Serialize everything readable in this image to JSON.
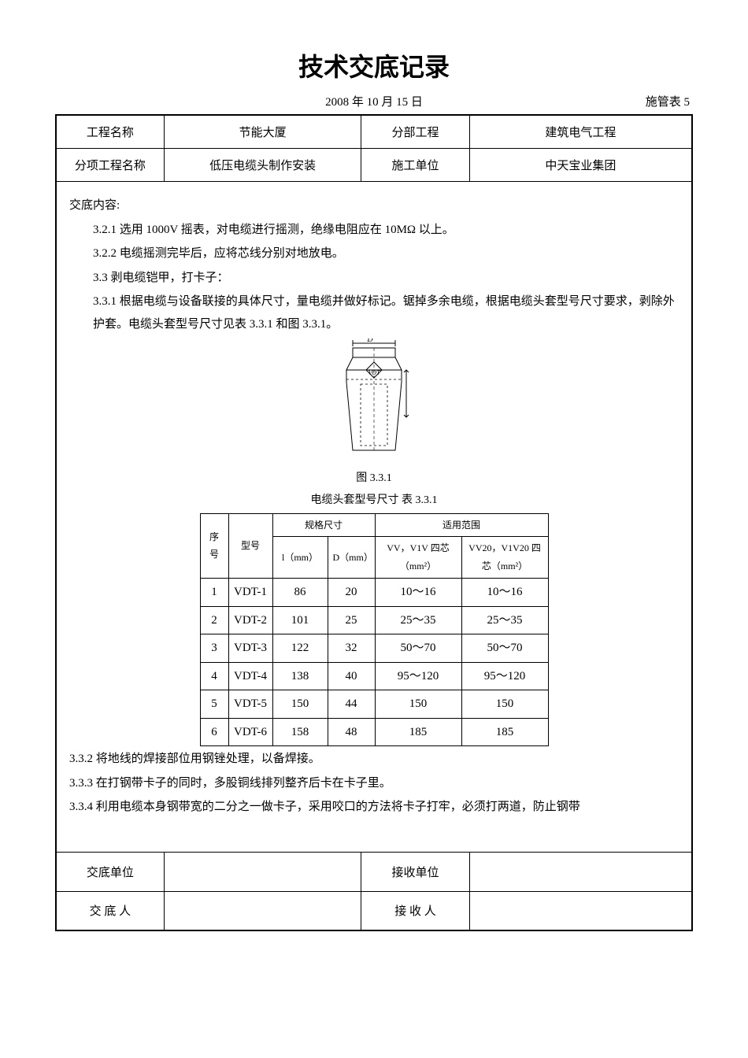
{
  "title": "技术交底记录",
  "date": "2008 年 10 月 15 日",
  "form_label": "施管表 5",
  "header": {
    "project_name_label": "工程名称",
    "project_name": "节能大厦",
    "section_label": "分部工程",
    "section": "建筑电气工程",
    "sub_name_label": "分项工程名称",
    "sub_name": "低压电缆头制作安装",
    "unit_label": "施工单位",
    "unit": "中天宝业集团"
  },
  "content": {
    "heading": "交底内容:",
    "p1": "3.2.1 选用 1000V 摇表，对电缆进行摇测，绝缘电阻应在 10MΩ 以上。",
    "p2": "3.2.2 电缆摇测完毕后，应将芯线分别对地放电。",
    "p3": "3.3 剥电缆铠甲，打卡子：",
    "p4": "3.3.1 根据电缆与设备联接的具体尺寸，量电缆并做好标记。锯掉多余电缆，根据电缆头套型号尺寸要求，剥除外护套。电缆头套型号尺寸见表 3.3.1 和图 3.3.1。",
    "fig_caption": "图 3.3.1",
    "table_caption": "电缆头套型号尺寸  表 3.3.1",
    "p5": "3.3.2 将地线的焊接部位用钢锉处理，以备焊接。",
    "p6": "3.3.3 在打钢带卡子的同时，多股铜线排列整齐后卡在卡子里。",
    "p7": "3.3.4 利用电缆本身钢带宽的二分之一做卡子，采用咬口的方法将卡子打牢，必须打两道，防止钢带"
  },
  "inner_table": {
    "col_seq": "序号",
    "col_model": "型号",
    "col_spec": "规格尺寸",
    "col_scope": "适用范围",
    "col_l": "l（mm）",
    "col_d": "D（mm）",
    "col_vv": "VV，V1V 四芯（mm²）",
    "col_vv20": "VV20，V1V20 四芯（mm²）",
    "rows": [
      {
        "seq": "1",
        "model": "VDT-1",
        "l": "86",
        "d": "20",
        "vv": "10～16",
        "vv20": "10～16"
      },
      {
        "seq": "2",
        "model": "VDT-2",
        "l": "101",
        "d": "25",
        "vv": "25～35",
        "vv20": "25～35"
      },
      {
        "seq": "3",
        "model": "VDT-3",
        "l": "122",
        "d": "32",
        "vv": "50～70",
        "vv20": "50～70"
      },
      {
        "seq": "4",
        "model": "VDT-4",
        "l": "138",
        "d": "40",
        "vv": "95～120",
        "vv20": "95～120"
      },
      {
        "seq": "5",
        "model": "VDT-5",
        "l": "150",
        "d": "44",
        "vv": "150",
        "vv20": "150"
      },
      {
        "seq": "6",
        "model": "VDT-6",
        "l": "158",
        "d": "48",
        "vv": "185",
        "vv20": "185"
      }
    ]
  },
  "footer": {
    "l1": "交底单位",
    "r1": "接收单位",
    "l2": "交 底 人",
    "r2": "接 收 人"
  },
  "diagram": {
    "label_d": "D",
    "label_vot": "VOT",
    "outline_color": "#000000",
    "dash_color": "#000000"
  }
}
